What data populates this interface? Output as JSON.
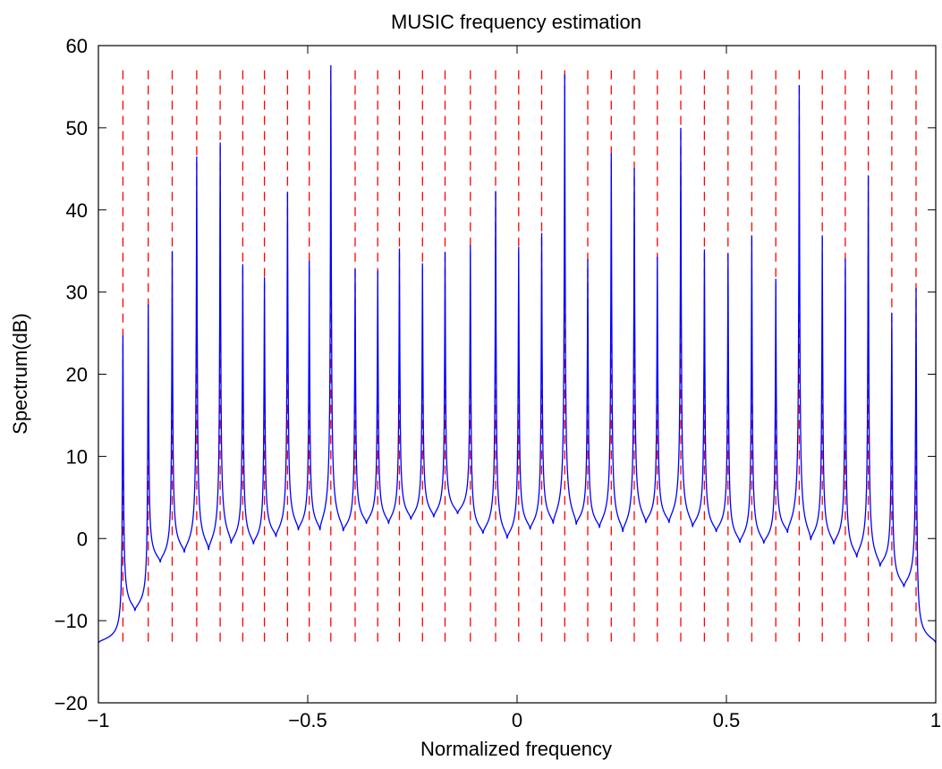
{
  "chart_data": {
    "type": "line",
    "title": "MUSIC frequency estimation",
    "xlabel": "Normalized frequency",
    "ylabel": "Spectrum(dB)",
    "xlim": [
      -1,
      1
    ],
    "ylim": [
      -20,
      60
    ],
    "xticks": [
      -1,
      -0.5,
      0,
      0.5,
      1
    ],
    "xtick_labels": [
      "−1",
      "−0.5",
      "0",
      "0.5",
      "1"
    ],
    "yticks": [
      -20,
      -10,
      0,
      10,
      20,
      30,
      40,
      50,
      60
    ],
    "ytick_labels": [
      "−20",
      "−10",
      "0",
      "10",
      "20",
      "30",
      "40",
      "50",
      "60"
    ],
    "grid": false,
    "series": [
      {
        "style": "solid",
        "color": "#0000ff",
        "peaks": [
          {
            "x": -0.9414,
            "y": 24.7
          },
          {
            "x": -0.881,
            "y": 28.5
          },
          {
            "x": -0.8237,
            "y": 35.0
          },
          {
            "x": -0.7652,
            "y": 46.5
          },
          {
            "x": -0.7091,
            "y": 48.2
          },
          {
            "x": -0.6552,
            "y": 33.4
          },
          {
            "x": -0.6034,
            "y": 31.8
          },
          {
            "x": -0.5483,
            "y": 42.2
          },
          {
            "x": -0.4964,
            "y": 33.8
          },
          {
            "x": -0.4448,
            "y": 57.6
          },
          {
            "x": -0.3868,
            "y": 32.8
          },
          {
            "x": -0.3328,
            "y": 32.6
          },
          {
            "x": -0.281,
            "y": 35.3
          },
          {
            "x": -0.2259,
            "y": 33.5
          },
          {
            "x": -0.172,
            "y": 34.9
          },
          {
            "x": -0.1116,
            "y": 35.7
          },
          {
            "x": -0.0512,
            "y": 42.3
          },
          {
            "x": 0.0038,
            "y": 35.5
          },
          {
            "x": 0.0588,
            "y": 37.2
          },
          {
            "x": 0.1138,
            "y": 56.5
          },
          {
            "x": 0.1688,
            "y": 34.0
          },
          {
            "x": 0.225,
            "y": 46.9
          },
          {
            "x": 0.28,
            "y": 45.1
          },
          {
            "x": 0.335,
            "y": 34.3
          },
          {
            "x": 0.391,
            "y": 50.0
          },
          {
            "x": 0.4475,
            "y": 35.2
          },
          {
            "x": 0.5039,
            "y": 34.7
          },
          {
            "x": 0.5606,
            "y": 36.9
          },
          {
            "x": 0.618,
            "y": 31.6
          },
          {
            "x": 0.674,
            "y": 55.2
          },
          {
            "x": 0.729,
            "y": 36.9
          },
          {
            "x": 0.784,
            "y": 34.1
          },
          {
            "x": 0.8389,
            "y": 44.2
          },
          {
            "x": 0.895,
            "y": 27.5
          },
          {
            "x": 0.953,
            "y": 30.5
          }
        ],
        "minima": [
          {
            "x": -1.0,
            "y": -12.7
          },
          {
            "x": -0.9127,
            "y": -8.8
          },
          {
            "x": -0.8523,
            "y": -2.9
          },
          {
            "x": -0.7948,
            "y": -1.7
          },
          {
            "x": -0.7367,
            "y": -1.4
          },
          {
            "x": -0.683,
            "y": -0.6
          },
          {
            "x": -0.6297,
            "y": -0.7
          },
          {
            "x": -0.5759,
            "y": 0.2
          },
          {
            "x": -0.5224,
            "y": 1.0
          },
          {
            "x": -0.4707,
            "y": 1.0
          },
          {
            "x": -0.4153,
            "y": 0.9
          },
          {
            "x": -0.3599,
            "y": 1.8
          },
          {
            "x": -0.3068,
            "y": 1.8
          },
          {
            "x": -0.2535,
            "y": 2.3
          },
          {
            "x": -0.199,
            "y": 2.6
          },
          {
            "x": -0.142,
            "y": 3.0
          },
          {
            "x": -0.0814,
            "y": 0.6
          },
          {
            "x": -0.0237,
            "y": 0.0
          },
          {
            "x": 0.0313,
            "y": 1.1
          },
          {
            "x": 0.0863,
            "y": 1.8
          },
          {
            "x": 0.1413,
            "y": 1.7
          },
          {
            "x": 0.1969,
            "y": 1.3
          },
          {
            "x": 0.2525,
            "y": 0.8
          },
          {
            "x": 0.3075,
            "y": 1.9
          },
          {
            "x": 0.363,
            "y": 1.9
          },
          {
            "x": 0.4193,
            "y": 1.4
          },
          {
            "x": 0.4757,
            "y": 0.8
          },
          {
            "x": 0.5322,
            "y": -0.5
          },
          {
            "x": 0.5893,
            "y": -0.6
          },
          {
            "x": 0.646,
            "y": 0.7
          },
          {
            "x": 0.7015,
            "y": -0.2
          },
          {
            "x": 0.7565,
            "y": -0.7
          },
          {
            "x": 0.8115,
            "y": -2.3
          },
          {
            "x": 0.8669,
            "y": -3.4
          },
          {
            "x": 0.924,
            "y": -5.9
          },
          {
            "x": 1.0,
            "y": -12.7
          }
        ]
      },
      {
        "style": "dashed",
        "color": "#ff0000",
        "type": "vertical-lines",
        "y_range": [
          -13,
          57
        ],
        "x": [
          -0.9414,
          -0.881,
          -0.8237,
          -0.7652,
          -0.7091,
          -0.6552,
          -0.6034,
          -0.5483,
          -0.4964,
          -0.4448,
          -0.3868,
          -0.3328,
          -0.281,
          -0.2259,
          -0.172,
          -0.1116,
          -0.0512,
          0.0038,
          0.0588,
          0.1138,
          0.1688,
          0.225,
          0.28,
          0.335,
          0.391,
          0.4475,
          0.5039,
          0.5606,
          0.618,
          0.674,
          0.729,
          0.784,
          0.8389,
          0.895,
          0.953
        ]
      }
    ]
  }
}
